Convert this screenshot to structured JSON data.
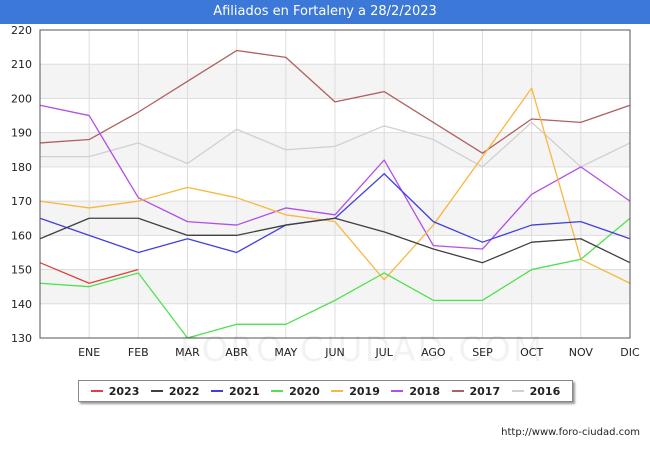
{
  "header": {
    "title": "Afiliados en Fortaleny a 28/2/2023"
  },
  "footer": {
    "source": "http://www.foro-ciudad.com",
    "watermark": "FORO-CIUDAD.COM"
  },
  "chart_data": {
    "type": "line",
    "title": "Afiliados en Fortaleny a 28/2/2023",
    "xlabel": "",
    "ylabel": "",
    "x_tick_labels": [
      "ENE",
      "FEB",
      "MAR",
      "ABR",
      "MAY",
      "JUN",
      "JUL",
      "AGO",
      "SEP",
      "OCT",
      "NOV",
      "DIC"
    ],
    "ylim": [
      130,
      220
    ],
    "yticks": [
      130,
      140,
      150,
      160,
      170,
      180,
      190,
      200,
      210,
      220
    ],
    "grid": true,
    "legend_position": "bottom",
    "series": [
      {
        "name": "2023",
        "color": "#e04040",
        "values": [
          152,
          146,
          150
        ]
      },
      {
        "name": "2022",
        "color": "#404040",
        "values": [
          159,
          165,
          165,
          160,
          160,
          163,
          165,
          161,
          156,
          152,
          158,
          159,
          152
        ]
      },
      {
        "name": "2021",
        "color": "#4040e0",
        "values": [
          165,
          160,
          155,
          159,
          155,
          163,
          165,
          178,
          164,
          158,
          163,
          164,
          159
        ]
      },
      {
        "name": "2020",
        "color": "#50e050",
        "values": [
          146,
          145,
          149,
          130,
          134,
          134,
          141,
          149,
          141,
          141,
          150,
          153,
          165
        ]
      },
      {
        "name": "2019",
        "color": "#f8b840",
        "values": [
          170,
          168,
          170,
          174,
          171,
          166,
          164,
          147,
          163,
          183,
          203,
          153,
          146
        ]
      },
      {
        "name": "2018",
        "color": "#b050e8",
        "values": [
          198,
          195,
          171,
          164,
          163,
          168,
          166,
          182,
          157,
          156,
          172,
          180,
          170
        ]
      },
      {
        "name": "2017",
        "color": "#b06060",
        "values": [
          187,
          188,
          196,
          205,
          214,
          212,
          199,
          202,
          193,
          184,
          194,
          193,
          198
        ]
      },
      {
        "name": "2016",
        "color": "#d0d0d0",
        "values": [
          183,
          183,
          187,
          181,
          191,
          185,
          186,
          192,
          188,
          180,
          193,
          180,
          187
        ]
      }
    ]
  }
}
